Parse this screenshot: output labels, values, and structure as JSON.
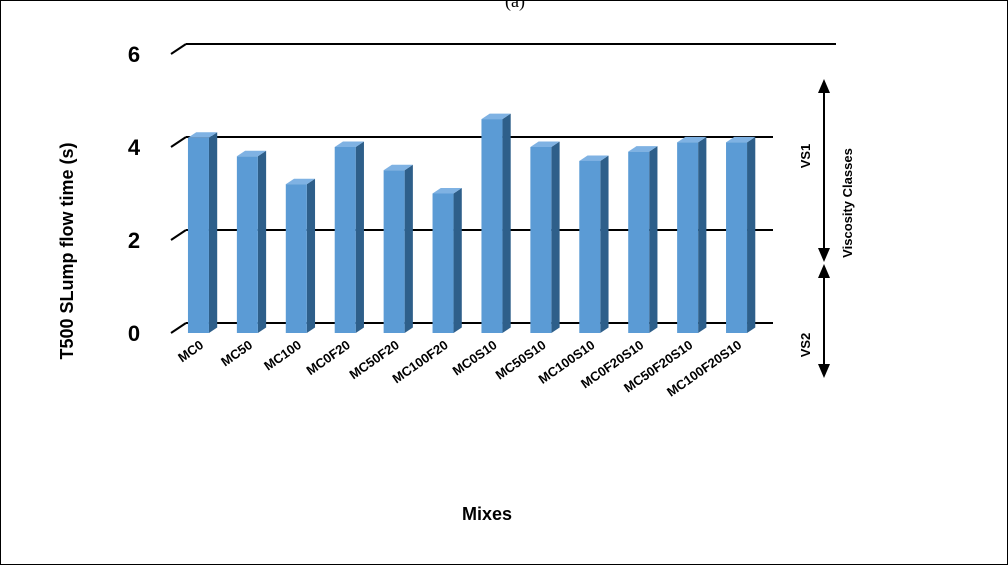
{
  "caption_fragment": "(a)",
  "chart_data": {
    "type": "bar",
    "categories": [
      "MC0",
      "MC50",
      "MC100",
      "MC0F20",
      "MC50F20",
      "MC100F20",
      "MC0S10",
      "MC50S10",
      "MC100S10",
      "MC0F20S10",
      "MC50F20S10",
      "MC100F20S10"
    ],
    "values": [
      4.2,
      3.8,
      3.2,
      4.0,
      3.5,
      3.0,
      4.6,
      4.0,
      3.7,
      3.9,
      4.1,
      4.1
    ],
    "ylabel": "T500 SLump flow time (s)",
    "xlabel": "Mixes",
    "ylim": [
      0,
      6
    ],
    "yticks": [
      "0",
      "2",
      "4",
      "6"
    ],
    "grid": true,
    "bar_color": "#5b9bd5",
    "bar_side_color": "#2e5f8a",
    "bar_top_color": "#7fb2e3",
    "annotations": {
      "class_axis_label": "Viscosity Classes",
      "vs1_label": "VS1",
      "vs2_label": "VS2"
    }
  }
}
